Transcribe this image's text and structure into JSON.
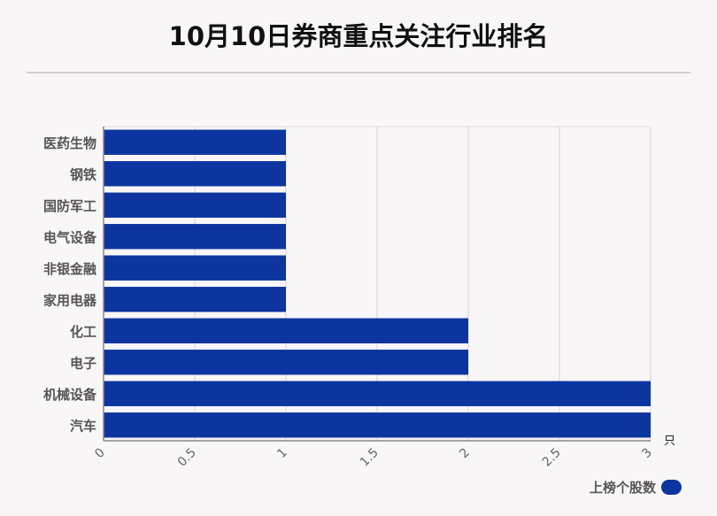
{
  "title": "10月10日券商重点关注行业排名",
  "colors": {
    "bar": "#0d35a0",
    "grid": "#d4d4d4",
    "axis": "#888888"
  },
  "chart_data": {
    "type": "bar",
    "orientation": "horizontal",
    "categories": [
      "医药生物",
      "钢铁",
      "国防军工",
      "电气设备",
      "非银金融",
      "家用电器",
      "化工",
      "电子",
      "机械设备",
      "汽车"
    ],
    "series": [
      {
        "name": "上榜个股数",
        "values": [
          1,
          1,
          1,
          1,
          1,
          1,
          2,
          2,
          3,
          3
        ]
      }
    ],
    "xlim": [
      0,
      3
    ],
    "xticks": [
      "0",
      "0.5",
      "1",
      "1.5",
      "2",
      "2.5",
      "3"
    ],
    "xunit": "只",
    "grid": true,
    "legend": "bottom-right"
  }
}
